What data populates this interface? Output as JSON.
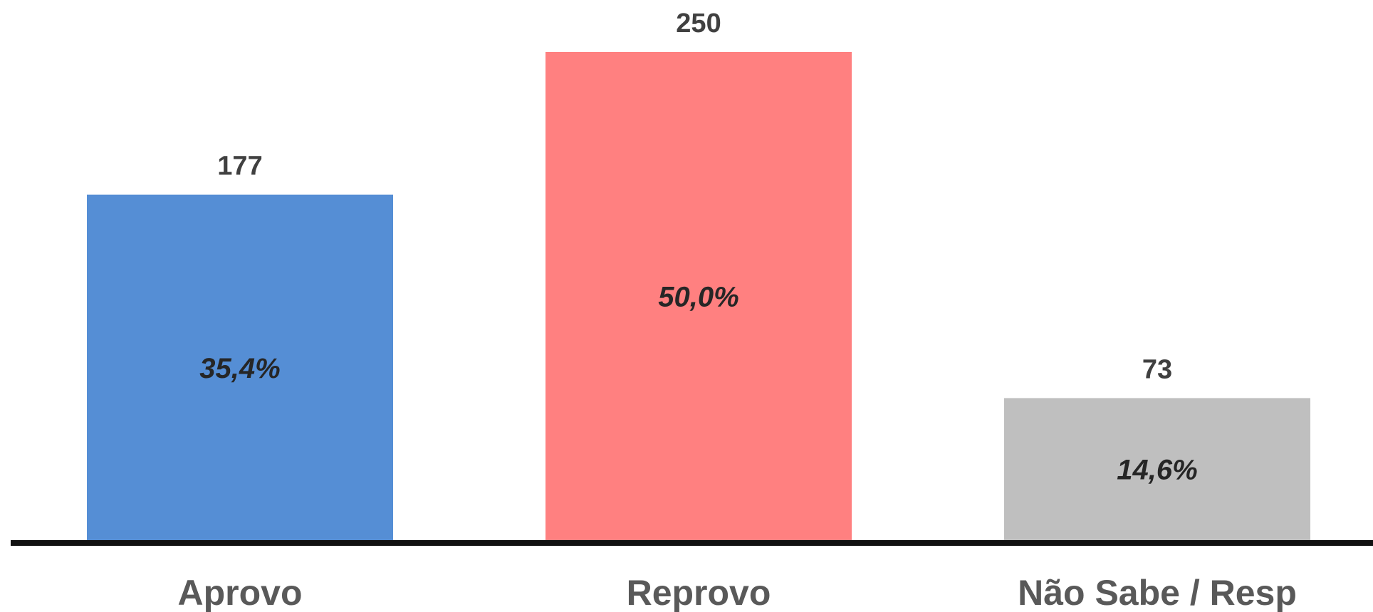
{
  "chart_data": {
    "type": "bar",
    "categories": [
      "Aprovo",
      "Reprovo",
      "Não Sabe / Resp"
    ],
    "values": [
      177,
      250,
      73
    ],
    "percent_labels": [
      "35,4%",
      "50,0%",
      "14,6%"
    ],
    "colors": [
      "#558ed5",
      "#ff8080",
      "#bfbfbf"
    ],
    "ylim": [
      0,
      250
    ],
    "title": "",
    "xlabel": "",
    "ylabel": "",
    "grid": false,
    "legend": "none"
  }
}
